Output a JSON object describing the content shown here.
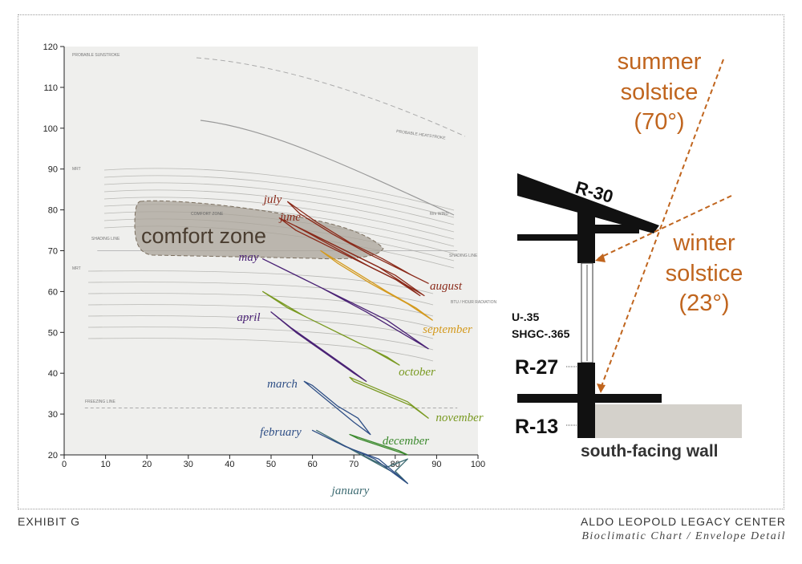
{
  "footer": {
    "exhibit": "EXHIBIT G",
    "center": "ALDO LEOPOLD LEGACY CENTER",
    "subtitle": "Bioclimatic Chart / Envelope Detail"
  },
  "chart_data": {
    "type": "line",
    "xlim": [
      0,
      100
    ],
    "ylim": [
      20,
      120
    ],
    "x_ticks": [
      0,
      10,
      20,
      30,
      40,
      50,
      60,
      70,
      80,
      90,
      100
    ],
    "y_ticks": [
      20,
      30,
      40,
      50,
      60,
      70,
      80,
      90,
      100,
      110,
      120
    ],
    "comfort_zone_label": "comfort zone",
    "background_labels": {
      "comfort_zone_small": "COMFORT ZONE",
      "probable_sunstroke": "PROBABLE SUNSTROKE",
      "probable_heatstroke": "PROBABLE HEATSTROKE",
      "shading_line": "SHADING LINE",
      "freezing_line": "FREEZING LINE",
      "btu_radiation": "BTU / HOUR RADIATION",
      "wind": "ft/m WIND",
      "mrt": "MRT"
    },
    "series": [
      {
        "name": "january",
        "color": "#3d6b72",
        "points": [
          [
            61,
            26
          ],
          [
            70,
            21
          ],
          [
            79,
            16
          ],
          [
            83,
            13
          ],
          [
            80,
            16
          ],
          [
            83,
            19
          ],
          [
            78,
            17
          ],
          [
            70,
            21
          ]
        ]
      },
      {
        "name": "february",
        "color": "#2f4f86",
        "points": [
          [
            60,
            26
          ],
          [
            68,
            22
          ],
          [
            76,
            19
          ],
          [
            83,
            13
          ],
          [
            75,
            19
          ],
          [
            66,
            23
          ]
        ]
      },
      {
        "name": "march",
        "color": "#2f4f86",
        "points": [
          [
            58,
            38
          ],
          [
            64,
            33
          ],
          [
            70,
            28
          ],
          [
            74,
            25
          ],
          [
            71,
            29
          ],
          [
            66,
            32
          ],
          [
            60,
            37
          ]
        ]
      },
      {
        "name": "december",
        "color": "#3c8a2e",
        "points": [
          [
            69,
            25
          ],
          [
            75,
            23
          ],
          [
            81,
            21
          ],
          [
            83,
            20
          ],
          [
            77,
            22
          ],
          [
            71,
            24
          ]
        ]
      },
      {
        "name": "november",
        "color": "#7a9a22",
        "points": [
          [
            69,
            39
          ],
          [
            76,
            36
          ],
          [
            83,
            33
          ],
          [
            88,
            29
          ],
          [
            84,
            32
          ],
          [
            77,
            35
          ],
          [
            70,
            38
          ]
        ]
      },
      {
        "name": "april",
        "color": "#4a2275",
        "points": [
          [
            50,
            55
          ],
          [
            56,
            50
          ],
          [
            63,
            45
          ],
          [
            70,
            40
          ],
          [
            73,
            38
          ],
          [
            69,
            41
          ],
          [
            62,
            46
          ],
          [
            55,
            51
          ]
        ]
      },
      {
        "name": "october",
        "color": "#7a9a22",
        "points": [
          [
            48,
            60
          ],
          [
            58,
            54
          ],
          [
            68,
            49
          ],
          [
            78,
            44
          ],
          [
            81,
            42
          ],
          [
            74,
            46
          ],
          [
            64,
            51
          ],
          [
            54,
            56
          ]
        ]
      },
      {
        "name": "may",
        "color": "#4a2275",
        "points": [
          [
            48,
            68
          ],
          [
            58,
            63
          ],
          [
            68,
            58
          ],
          [
            78,
            53
          ],
          [
            88,
            46
          ],
          [
            83,
            49
          ],
          [
            73,
            55
          ],
          [
            62,
            61
          ],
          [
            52,
            66
          ]
        ]
      },
      {
        "name": "september",
        "color": "#d49a1e",
        "points": [
          [
            62,
            70
          ],
          [
            70,
            65
          ],
          [
            78,
            60
          ],
          [
            85,
            56
          ],
          [
            89,
            53
          ],
          [
            83,
            57
          ],
          [
            74,
            62
          ],
          [
            66,
            67
          ]
        ]
      },
      {
        "name": "june",
        "color": "#8a2a1a",
        "points": [
          [
            52,
            78
          ],
          [
            60,
            74
          ],
          [
            68,
            70
          ],
          [
            76,
            66
          ],
          [
            82,
            62
          ],
          [
            86,
            59
          ],
          [
            80,
            63
          ],
          [
            72,
            67
          ],
          [
            64,
            71
          ],
          [
            56,
            75
          ]
        ]
      },
      {
        "name": "july",
        "color": "#8a2a1a",
        "points": [
          [
            54,
            82
          ],
          [
            61,
            77
          ],
          [
            69,
            72
          ],
          [
            77,
            68
          ],
          [
            84,
            64
          ],
          [
            88,
            62
          ],
          [
            82,
            65
          ],
          [
            74,
            69
          ],
          [
            65,
            74
          ],
          [
            57,
            79
          ]
        ]
      },
      {
        "name": "august",
        "color": "#8a2a1a",
        "points": [
          [
            56,
            76
          ],
          [
            64,
            72
          ],
          [
            72,
            68
          ],
          [
            80,
            64
          ],
          [
            87,
            59
          ],
          [
            82,
            62
          ],
          [
            74,
            66
          ],
          [
            65,
            71
          ]
        ]
      }
    ]
  },
  "envelope_detail": {
    "roof_r_value": "R-30",
    "window_u": "U-.35",
    "window_shgc": "SHGC-.365",
    "wall_r_value": "R-27",
    "foundation_r_value": "R-13",
    "caption": "south-facing wall",
    "summer_label": [
      "summer",
      "solstice",
      "(70°)"
    ],
    "winter_label": [
      "winter",
      "solstice",
      "(23°)"
    ],
    "sun_color": "#c0651e",
    "structure_color": "#111111",
    "ground_color": "#d4d1cb"
  }
}
